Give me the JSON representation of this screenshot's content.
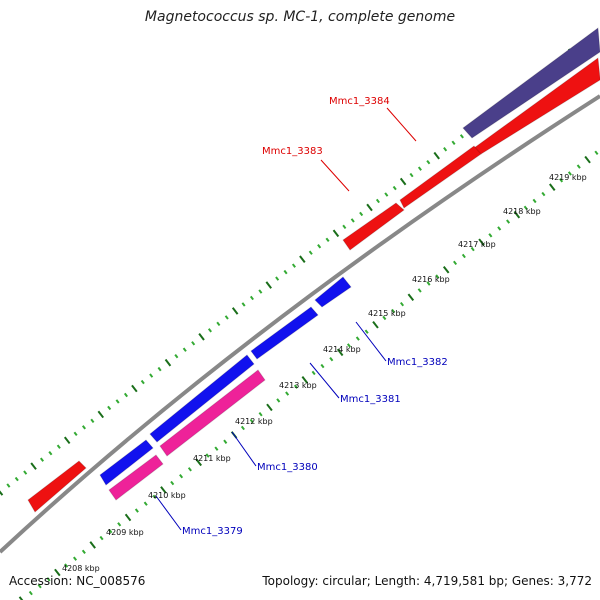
{
  "map": {
    "title": "Magnetococcus sp. MC-1, complete genome",
    "accession": "Accession: NC_008576",
    "summary": "Topology: circular; Length: 4,719,581 bp; Genes: 3,772"
  },
  "colors": {
    "forward_cds": "#ee1111",
    "reverse_cds": "#1111ee",
    "reverse_pink": "#ee2299",
    "other_feature": "#4a3f8a",
    "backbone": "#888888",
    "tick_dark": "#1a6e1a",
    "tick_light": "#33aa33",
    "label_forward": "#dd0000",
    "label_reverse": "#0000bb"
  },
  "genes": [
    {
      "id": "Mmc1_3384",
      "strand": "forward"
    },
    {
      "id": "Mmc1_3383",
      "strand": "forward"
    },
    {
      "id": "Mmc1_3382",
      "strand": "reverse"
    },
    {
      "id": "Mmc1_3381",
      "strand": "reverse"
    },
    {
      "id": "Mmc1_3380",
      "strand": "reverse"
    },
    {
      "id": "Mmc1_3379",
      "strand": "reverse"
    }
  ],
  "kbp_ticks": [
    "4208 kbp",
    "4209 kbp",
    "4210 kbp",
    "4211 kbp",
    "4212 kbp",
    "4213 kbp",
    "4214 kbp",
    "4215 kbp",
    "4216 kbp",
    "4217 kbp",
    "4218 kbp",
    "4219 kbp"
  ]
}
